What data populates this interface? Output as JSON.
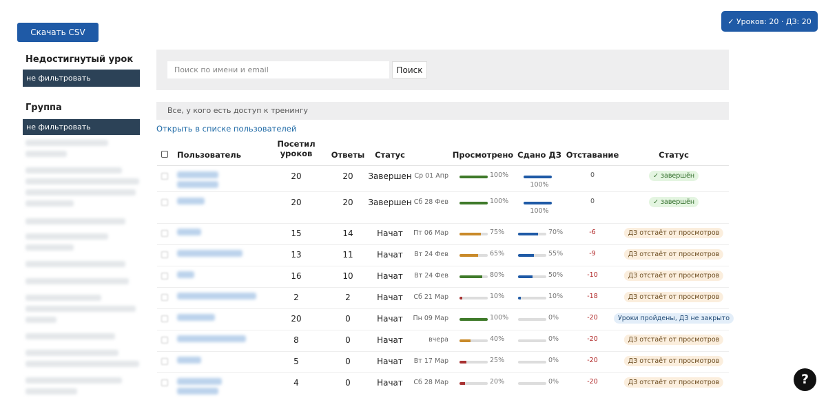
{
  "header": {
    "download_button": "Скачать CSV",
    "summary_badge": "✓ Уроков: 20 · ДЗ: 20"
  },
  "sidebar": {
    "filters": [
      {
        "title": "Недостигнутый урок",
        "value": "не фильтровать"
      },
      {
        "title": "Группа",
        "value": "не фильтровать"
      }
    ]
  },
  "search": {
    "placeholder": "Поиск по имени и email",
    "button": "Поиск"
  },
  "access_bar": "Все, у кого есть доступ к тренингу",
  "open_link": "Открыть в списке пользователей",
  "table": {
    "columns": [
      "Пользователь",
      "Посетил уроков",
      "Ответы",
      "Статус",
      "Просмотрено",
      "Сдано ДЗ",
      "Отставание",
      "Статус"
    ],
    "rows": [
      {
        "visited": 20,
        "answers": 20,
        "status": "Завершен",
        "date": "Ср 01 Апр",
        "viewed": {
          "value": 100,
          "label": "100%"
        },
        "viewed_color": "#3f7a2a",
        "submitted": {
          "value": 100,
          "label": "100%"
        },
        "lag": "0",
        "badge": "✓ завершён",
        "badge_kind": "done"
      },
      {
        "visited": 20,
        "answers": 20,
        "status": "Завершен",
        "date": "Сб 28 Фев",
        "viewed": {
          "value": 100,
          "label": "100%"
        },
        "viewed_color": "#3f7a2a",
        "submitted": {
          "value": 100,
          "label": "100%"
        },
        "lag": "0",
        "badge": "✓ завершён",
        "badge_kind": "done"
      },
      {
        "visited": 15,
        "answers": 14,
        "status": "Начат",
        "date": "Пт 06 Мар",
        "viewed": {
          "value": 75,
          "label": "75%"
        },
        "viewed_color": "#c98a2a",
        "submitted": {
          "value": 70,
          "label": "70%"
        },
        "lag": "-6",
        "badge": "ДЗ отстаёт от просмотров",
        "badge_kind": "warn"
      },
      {
        "visited": 13,
        "answers": 11,
        "status": "Начат",
        "date": "Вт 24 Фев",
        "viewed": {
          "value": 65,
          "label": "65%"
        },
        "viewed_color": "#c98a2a",
        "submitted": {
          "value": 55,
          "label": "55%"
        },
        "lag": "-9",
        "badge": "ДЗ отстаёт от просмотров",
        "badge_kind": "warn"
      },
      {
        "visited": 16,
        "answers": 10,
        "status": "Начат",
        "date": "Вт 24 Фев",
        "viewed": {
          "value": 80,
          "label": "80%"
        },
        "viewed_color": "#3f7a2a",
        "submitted": {
          "value": 50,
          "label": "50%"
        },
        "lag": "-10",
        "badge": "ДЗ отстаёт от просмотров",
        "badge_kind": "warn"
      },
      {
        "visited": 2,
        "answers": 2,
        "status": "Начат",
        "date": "Сб 21 Мар",
        "viewed": {
          "value": 10,
          "label": "10%"
        },
        "viewed_color": "#a83232",
        "submitted": {
          "value": 10,
          "label": "10%"
        },
        "lag": "-18",
        "badge": "ДЗ отстаёт от просмотров",
        "badge_kind": "warn"
      },
      {
        "visited": 20,
        "answers": 0,
        "status": "Начат",
        "date": "Пн 09 Мар",
        "viewed": {
          "value": 100,
          "label": "100%"
        },
        "viewed_color": "#3f7a2a",
        "submitted": {
          "value": 0,
          "label": "0%"
        },
        "lag": "-20",
        "badge": "Уроки пройдены, ДЗ не закрыто",
        "badge_kind": "info"
      },
      {
        "visited": 8,
        "answers": 0,
        "status": "Начат",
        "date": "вчера",
        "viewed": {
          "value": 40,
          "label": "40%"
        },
        "viewed_color": "#c98a2a",
        "submitted": {
          "value": 0,
          "label": "0%"
        },
        "lag": "-20",
        "badge": "ДЗ отстаёт от просмотров",
        "badge_kind": "warn"
      },
      {
        "visited": 5,
        "answers": 0,
        "status": "Начат",
        "date": "Вт 17 Мар",
        "viewed": {
          "value": 25,
          "label": "25%"
        },
        "viewed_color": "#a83232",
        "submitted": {
          "value": 0,
          "label": "0%"
        },
        "lag": "-20",
        "badge": "ДЗ отстаёт от просмотров",
        "badge_kind": "warn"
      },
      {
        "visited": 4,
        "answers": 0,
        "status": "Начат",
        "date": "Сб 28 Мар",
        "viewed": {
          "value": 20,
          "label": "20%"
        },
        "viewed_color": "#a83232",
        "submitted": {
          "value": 0,
          "label": "0%"
        },
        "lag": "-20",
        "badge": "ДЗ отстаёт от просмотров",
        "badge_kind": "warn"
      }
    ]
  },
  "help_button": "?"
}
